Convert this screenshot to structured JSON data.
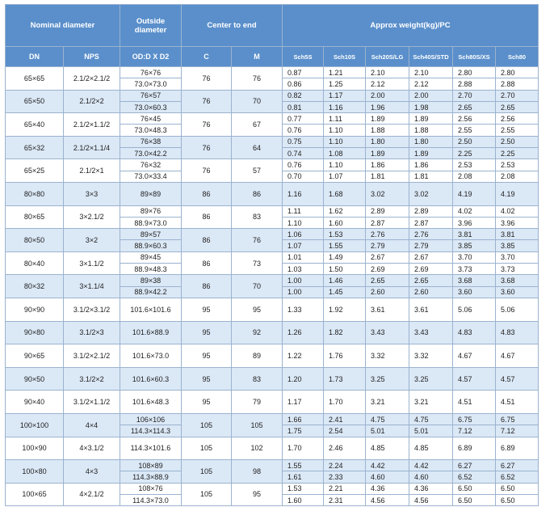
{
  "table": {
    "group_headers": [
      "Nominal diameter",
      "Outside diameter",
      "Center to end",
      "Approx weight(kg)/PC"
    ],
    "columns": [
      "DN",
      "NPS",
      "OD:D X D2",
      "C",
      "M",
      "Sch5S",
      "Sch10S",
      "Sch20S/LG",
      "Sch40S/STD",
      "Sch80S/XS",
      "Sch80"
    ],
    "rows": [
      {
        "dn": "65×65",
        "nps": "2.1/2×2.1/2",
        "od": [
          "76×76",
          "73.0×73.0"
        ],
        "c": "76",
        "m": "76",
        "weights": [
          [
            "0.87",
            "1.21",
            "2.10",
            "2.10",
            "2.80",
            "2.80"
          ],
          [
            "0.86",
            "1.25",
            "2.12",
            "2.12",
            "2.88",
            "2.88"
          ]
        ]
      },
      {
        "dn": "65×50",
        "nps": "2.1/2×2",
        "od": [
          "76×57",
          "73.0×60.3"
        ],
        "c": "76",
        "m": "70",
        "weights": [
          [
            "0.82",
            "1.17",
            "2.00",
            "2.00",
            "2.70",
            "2.70"
          ],
          [
            "0.81",
            "1.16",
            "1.96",
            "1.98",
            "2.65",
            "2.65"
          ]
        ]
      },
      {
        "dn": "65×40",
        "nps": "2.1/2×1.1/2",
        "od": [
          "76×45",
          "73.0×48.3"
        ],
        "c": "76",
        "m": "67",
        "weights": [
          [
            "0.77",
            "1.11",
            "1.89",
            "1.89",
            "2.56",
            "2.56"
          ],
          [
            "0.76",
            "1.10",
            "1.88",
            "1.88",
            "2.55",
            "2.55"
          ]
        ]
      },
      {
        "dn": "65×32",
        "nps": "2.1/2×1.1/4",
        "od": [
          "76×38",
          "73.0×42.2"
        ],
        "c": "76",
        "m": "64",
        "weights": [
          [
            "0.75",
            "1.10",
            "1.80",
            "1.80",
            "2.50",
            "2.50"
          ],
          [
            "0.74",
            "1.08",
            "1.89",
            "1.89",
            "2.25",
            "2.25"
          ]
        ]
      },
      {
        "dn": "65×25",
        "nps": "2.1/2×1",
        "od": [
          "76×32",
          "73.0×33.4"
        ],
        "c": "76",
        "m": "57",
        "weights": [
          [
            "0.76",
            "1.10",
            "1.86",
            "1.86",
            "2.53",
            "2.53"
          ],
          [
            "0.70",
            "1.07",
            "1.81",
            "1.81",
            "2.08",
            "2.08"
          ]
        ]
      },
      {
        "dn": "80×80",
        "nps": "3×3",
        "od": [
          "89×89"
        ],
        "c": "86",
        "m": "86",
        "weights": [
          [
            "1.16",
            "1.68",
            "3.02",
            "3.02",
            "4.19",
            "4.19"
          ]
        ]
      },
      {
        "dn": "80×65",
        "nps": "3×2.1/2",
        "od": [
          "89×76",
          "88.9×73.0"
        ],
        "c": "86",
        "m": "83",
        "weights": [
          [
            "1.11",
            "1.62",
            "2.89",
            "2.89",
            "4.02",
            "4.02"
          ],
          [
            "1.10",
            "1.60",
            "2.87",
            "2.87",
            "3.96",
            "3.96"
          ]
        ]
      },
      {
        "dn": "80×50",
        "nps": "3×2",
        "od": [
          "89×57",
          "88.9×60.3"
        ],
        "c": "86",
        "m": "76",
        "weights": [
          [
            "1.06",
            "1.53",
            "2.76",
            "2.76",
            "3.81",
            "3.81"
          ],
          [
            "1.07",
            "1.55",
            "2.79",
            "2.79",
            "3.85",
            "3.85"
          ]
        ]
      },
      {
        "dn": "80×40",
        "nps": "3×1.1/2",
        "od": [
          "89×45",
          "88.9×48.3"
        ],
        "c": "86",
        "m": "73",
        "weights": [
          [
            "1.01",
            "1.49",
            "2.67",
            "2.67",
            "3.70",
            "3.70"
          ],
          [
            "1.03",
            "1.50",
            "2.69",
            "2.69",
            "3.73",
            "3.73"
          ]
        ]
      },
      {
        "dn": "80×32",
        "nps": "3×1.1/4",
        "od": [
          "89×38",
          "88.9×42.2"
        ],
        "c": "86",
        "m": "70",
        "weights": [
          [
            "1.00",
            "1.46",
            "2.65",
            "2.65",
            "3.68",
            "3.68"
          ],
          [
            "1.00",
            "1.45",
            "2.60",
            "2.60",
            "3.60",
            "3.60"
          ]
        ]
      },
      {
        "dn": "90×90",
        "nps": "3.1/2×3.1/2",
        "od": [
          "101.6×101.6"
        ],
        "c": "95",
        "m": "95",
        "weights": [
          [
            "1.33",
            "1.92",
            "3.61",
            "3.61",
            "5.06",
            "5.06"
          ]
        ]
      },
      {
        "dn": "90×80",
        "nps": "3.1/2×3",
        "od": [
          "101.6×88.9"
        ],
        "c": "95",
        "m": "92",
        "weights": [
          [
            "1.26",
            "1.82",
            "3.43",
            "3.43",
            "4.83",
            "4.83"
          ]
        ]
      },
      {
        "dn": "90×65",
        "nps": "3.1/2×2.1/2",
        "od": [
          "101.6×73.0"
        ],
        "c": "95",
        "m": "89",
        "weights": [
          [
            "1.22",
            "1.76",
            "3.32",
            "3.32",
            "4.67",
            "4.67"
          ]
        ]
      },
      {
        "dn": "90×50",
        "nps": "3.1/2×2",
        "od": [
          "101.6×60.3"
        ],
        "c": "95",
        "m": "83",
        "weights": [
          [
            "1.20",
            "1.73",
            "3.25",
            "3.25",
            "4.57",
            "4.57"
          ]
        ]
      },
      {
        "dn": "90×40",
        "nps": "3.1/2×1.1/2",
        "od": [
          "101.6×48.3"
        ],
        "c": "95",
        "m": "79",
        "weights": [
          [
            "1.17",
            "1.70",
            "3.21",
            "3.21",
            "4.51",
            "4.51"
          ]
        ]
      },
      {
        "dn": "100×100",
        "nps": "4×4",
        "od": [
          "106×106",
          "114.3×114.3"
        ],
        "c": "105",
        "m": "105",
        "weights": [
          [
            "1.66",
            "2.41",
            "4.75",
            "4.75",
            "6.75",
            "6.75"
          ],
          [
            "1.75",
            "2.54",
            "5.01",
            "5.01",
            "7.12",
            "7.12"
          ]
        ]
      },
      {
        "dn": "100×90",
        "nps": "4×3.1/2",
        "od": [
          "114.3×101.6"
        ],
        "c": "105",
        "m": "102",
        "weights": [
          [
            "1.70",
            "2.46",
            "4.85",
            "4.85",
            "6.89",
            "6.89"
          ]
        ]
      },
      {
        "dn": "100×80",
        "nps": "4×3",
        "od": [
          "108×89",
          "114.3×88.9"
        ],
        "c": "105",
        "m": "98",
        "weights": [
          [
            "1.55",
            "2.24",
            "4.42",
            "4.42",
            "6.27",
            "6.27"
          ],
          [
            "1.61",
            "2.33",
            "4.60",
            "4.60",
            "6.52",
            "6.52"
          ]
        ]
      },
      {
        "dn": "100×65",
        "nps": "4×2.1/2",
        "od": [
          "108×76",
          "114.3×73.0"
        ],
        "c": "105",
        "m": "95",
        "weights": [
          [
            "1.53",
            "2.21",
            "4.36",
            "4.36",
            "6.50",
            "6.50"
          ],
          [
            "1.60",
            "2.31",
            "4.56",
            "4.56",
            "6.50",
            "6.50"
          ]
        ]
      }
    ]
  }
}
